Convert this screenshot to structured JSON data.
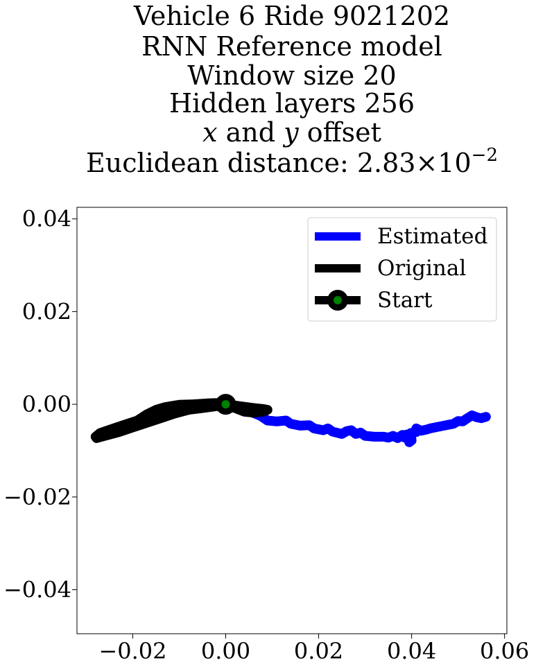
{
  "chart_data": {
    "type": "line",
    "title_lines": [
      "Vehicle 6 Ride 9021202",
      "RNN Reference model",
      "Window size 20",
      "Hidden layers 256"
    ],
    "title_offset_line": {
      "x": "x",
      "and": " and ",
      "y": "y",
      "rest": " offset"
    },
    "title_distance": {
      "prefix": "Euclidean distance: 2.83×10",
      "exponent": "−2"
    },
    "xlim": [
      -0.032,
      0.0605
    ],
    "ylim": [
      -0.0495,
      0.0425
    ],
    "xticks": [
      -0.02,
      0.0,
      0.02,
      0.04,
      0.06
    ],
    "xtick_labels": [
      "−0.02",
      "0.00",
      "0.02",
      "0.04",
      "0.06"
    ],
    "yticks": [
      0.04,
      0.02,
      0.0,
      -0.02,
      -0.04
    ],
    "ytick_labels": [
      "0.04",
      "0.02",
      "0.00",
      "−0.02",
      "−0.04"
    ],
    "legend_position": "upper right",
    "series": [
      {
        "name": "Estimated",
        "color": "#0000ff",
        "points": [
          [
            0.0,
            0.0
          ],
          [
            0.0025,
            -0.0005
          ],
          [
            0.005,
            -0.0015
          ],
          [
            0.0075,
            -0.0025
          ],
          [
            0.009,
            -0.0035
          ],
          [
            0.011,
            -0.0037
          ],
          [
            0.013,
            -0.0035
          ],
          [
            0.014,
            -0.0042
          ],
          [
            0.016,
            -0.0046
          ],
          [
            0.018,
            -0.0045
          ],
          [
            0.019,
            -0.0052
          ],
          [
            0.021,
            -0.0056
          ],
          [
            0.022,
            -0.0052
          ],
          [
            0.023,
            -0.0059
          ],
          [
            0.025,
            -0.0064
          ],
          [
            0.026,
            -0.0058
          ],
          [
            0.027,
            -0.0056
          ],
          [
            0.028,
            -0.0064
          ],
          [
            0.029,
            -0.0061
          ],
          [
            0.03,
            -0.0068
          ],
          [
            0.032,
            -0.007
          ],
          [
            0.034,
            -0.007
          ],
          [
            0.035,
            -0.0072
          ],
          [
            0.036,
            -0.0068
          ],
          [
            0.037,
            -0.0073
          ],
          [
            0.038,
            -0.0066
          ],
          [
            0.0385,
            -0.0072
          ],
          [
            0.039,
            -0.0065
          ],
          [
            0.0395,
            -0.0082
          ],
          [
            0.04,
            -0.0078
          ],
          [
            0.0398,
            -0.0062
          ],
          [
            0.041,
            -0.006
          ],
          [
            0.041,
            -0.0052
          ],
          [
            0.042,
            -0.0057
          ],
          [
            0.043,
            -0.0055
          ],
          [
            0.044,
            -0.0052
          ],
          [
            0.046,
            -0.0048
          ],
          [
            0.048,
            -0.0044
          ],
          [
            0.049,
            -0.0042
          ],
          [
            0.05,
            -0.0036
          ],
          [
            0.051,
            -0.0037
          ],
          [
            0.052,
            -0.003
          ],
          [
            0.053,
            -0.0024
          ],
          [
            0.054,
            -0.0028
          ],
          [
            0.055,
            -0.003
          ],
          [
            0.056,
            -0.0027
          ]
        ]
      },
      {
        "name": "Original",
        "color": "#000000",
        "points": [
          [
            0.0,
            0.0
          ],
          [
            0.003,
            -0.0004
          ],
          [
            0.006,
            -0.0008
          ],
          [
            0.008,
            -0.001
          ],
          [
            0.009,
            -0.0012
          ],
          [
            0.008,
            -0.0016
          ],
          [
            0.006,
            -0.0018
          ],
          [
            0.004,
            -0.0016
          ],
          [
            0.002,
            -0.0008
          ],
          [
            0.0,
            -0.0004
          ],
          [
            -0.002,
            -0.0004
          ],
          [
            -0.005,
            -0.0008
          ],
          [
            -0.008,
            -0.0012
          ],
          [
            -0.011,
            -0.002
          ],
          [
            -0.014,
            -0.003
          ],
          [
            -0.017,
            -0.004
          ],
          [
            -0.02,
            -0.005
          ],
          [
            -0.023,
            -0.006
          ],
          [
            -0.026,
            -0.0068
          ],
          [
            -0.0278,
            -0.0073
          ],
          [
            -0.028,
            -0.007
          ],
          [
            -0.027,
            -0.0062
          ],
          [
            -0.025,
            -0.0055
          ],
          [
            -0.022,
            -0.0045
          ],
          [
            -0.019,
            -0.0035
          ],
          [
            -0.017,
            -0.0022
          ],
          [
            -0.015,
            -0.0012
          ],
          [
            -0.013,
            -0.0006
          ],
          [
            -0.01,
            -0.0001
          ],
          [
            -0.007,
            0.0
          ],
          [
            -0.004,
            0.0002
          ],
          [
            -0.001,
            0.0003
          ],
          [
            0.001,
            0.0
          ],
          [
            0.003,
            -0.0008
          ],
          [
            0.005,
            -0.0012
          ],
          [
            0.007,
            -0.0015
          ],
          [
            0.0085,
            -0.0014
          ],
          [
            0.006,
            -0.0012
          ],
          [
            0.003,
            -0.0005
          ],
          [
            0.0,
            0.0
          ]
        ]
      }
    ],
    "start": {
      "name": "Start",
      "x": 0.0,
      "y": 0.0,
      "marker_color": "#008000",
      "ring_color": "#000000"
    }
  }
}
